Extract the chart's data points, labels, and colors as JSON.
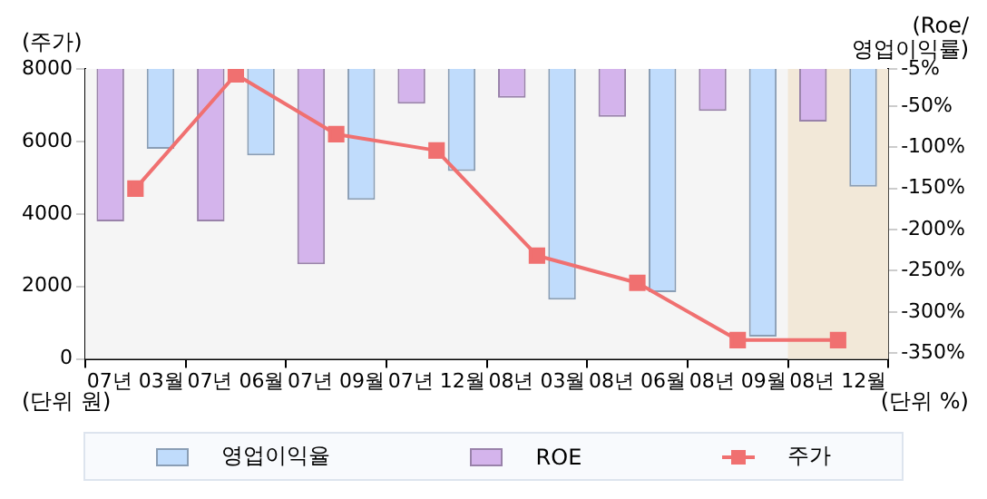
{
  "chart_data": {
    "type": "bar",
    "ylabel": "(주가)",
    "y2label": "(Roe/\n영업이익률)",
    "categories": [
      "07년 03월",
      "07년 06월",
      "07년 09월",
      "07년 12월",
      "08년 03월",
      "08년 06월",
      "08년 09월",
      "08년 12월"
    ],
    "series": [
      {
        "name": "영업이익율",
        "color": "#c0dcfc",
        "axis": "y2",
        "values": [
          -102,
          -110,
          -164,
          -129,
          -285,
          -276,
          -330,
          -148
        ]
      },
      {
        "name": "ROE",
        "color": "#d4b4ec",
        "axis": "y2",
        "values": [
          -190,
          -190,
          -242,
          -47,
          -40,
          -63,
          -56,
          -69
        ]
      },
      {
        "name": "주가",
        "type": "line",
        "color": "#f07070",
        "marker": "square",
        "values": [
          4700,
          7850,
          6200,
          5750,
          2850,
          2100,
          520,
          520
        ]
      }
    ],
    "ylim": [
      0,
      8000
    ],
    "yticks": [
      0,
      2000,
      4000,
      6000,
      8000
    ],
    "y2lim": [
      -357,
      -5
    ],
    "y2ticks": [
      {
        "value": -5,
        "label": "-5%"
      },
      {
        "value": -50,
        "label": "-50%"
      },
      {
        "value": -100,
        "label": "-100%"
      },
      {
        "value": -150,
        "label": "-150%"
      },
      {
        "value": -200,
        "label": "-200%"
      },
      {
        "value": -250,
        "label": "-250%"
      },
      {
        "value": -300,
        "label": "-300%"
      },
      {
        "value": -350,
        "label": "-350%"
      }
    ],
    "bands": [
      {
        "axis": "x",
        "from": "08년 12월",
        "to": "08년 12월",
        "color": "#f2e8d8"
      }
    ],
    "annotations": [
      "(단위 원)",
      "(단위 %)"
    ],
    "grid": false,
    "legend": "bottom"
  }
}
